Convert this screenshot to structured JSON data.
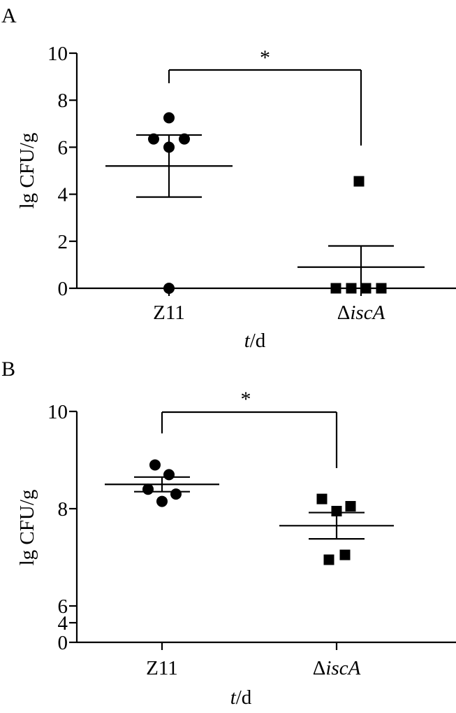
{
  "chart_data": [
    {
      "panel_label": "A",
      "type": "scatter",
      "xlabel_italic": "t",
      "xlabel_rest": "/d",
      "ylabel": "lg CFU/g",
      "categories": [
        "Z11",
        "ΔiscA"
      ],
      "category_labels": [
        {
          "prefix": "Z11",
          "italic": ""
        },
        {
          "prefix": "Δ",
          "italic": "iscA"
        }
      ],
      "ylim": [
        0,
        10
      ],
      "yticks": [
        {
          "value": 0,
          "label": "0"
        },
        {
          "value": 2,
          "label": "2"
        },
        {
          "value": 4,
          "label": "4"
        },
        {
          "value": 6,
          "label": "6"
        },
        {
          "value": 8,
          "label": "8"
        },
        {
          "value": 10,
          "label": "10"
        }
      ],
      "series": [
        {
          "category": "Z11",
          "marker": "circle",
          "points": [
            7.25,
            6.35,
            6.0,
            6.35,
            0.0
          ],
          "mean": 5.2,
          "sem": 1.32
        },
        {
          "category": "ΔiscA",
          "marker": "square",
          "points": [
            4.55,
            0.0,
            0.0,
            0.0,
            0.0
          ],
          "mean": 0.9,
          "sem": 0.9
        }
      ],
      "significance": {
        "label": "*",
        "from": "Z11",
        "to": "ΔiscA"
      }
    },
    {
      "panel_label": "B",
      "type": "scatter",
      "xlabel_italic": "t",
      "xlabel_rest": "/d",
      "ylabel": "lg CFU/g",
      "categories": [
        "Z11",
        "ΔiscA"
      ],
      "category_labels": [
        {
          "prefix": "Z11",
          "italic": ""
        },
        {
          "prefix": "Δ",
          "italic": "iscA"
        }
      ],
      "ylim": [
        0,
        10
      ],
      "axis_break": true,
      "yticks": [
        {
          "value": 0,
          "label": "0"
        },
        {
          "value": 4,
          "label": "4"
        },
        {
          "value": 6,
          "label": "6"
        },
        {
          "value": 8,
          "label": "8"
        },
        {
          "value": 10,
          "label": "10"
        }
      ],
      "series": [
        {
          "category": "Z11",
          "marker": "circle",
          "points": [
            8.9,
            8.7,
            8.4,
            8.3,
            8.15
          ],
          "mean": 8.5,
          "sem": 0.15
        },
        {
          "category": "ΔiscA",
          "marker": "square",
          "points": [
            8.2,
            8.05,
            7.95,
            7.05,
            6.95
          ],
          "mean": 7.65,
          "sem": 0.27
        }
      ],
      "significance": {
        "label": "*",
        "from": "Z11",
        "to": "ΔiscA"
      }
    }
  ]
}
